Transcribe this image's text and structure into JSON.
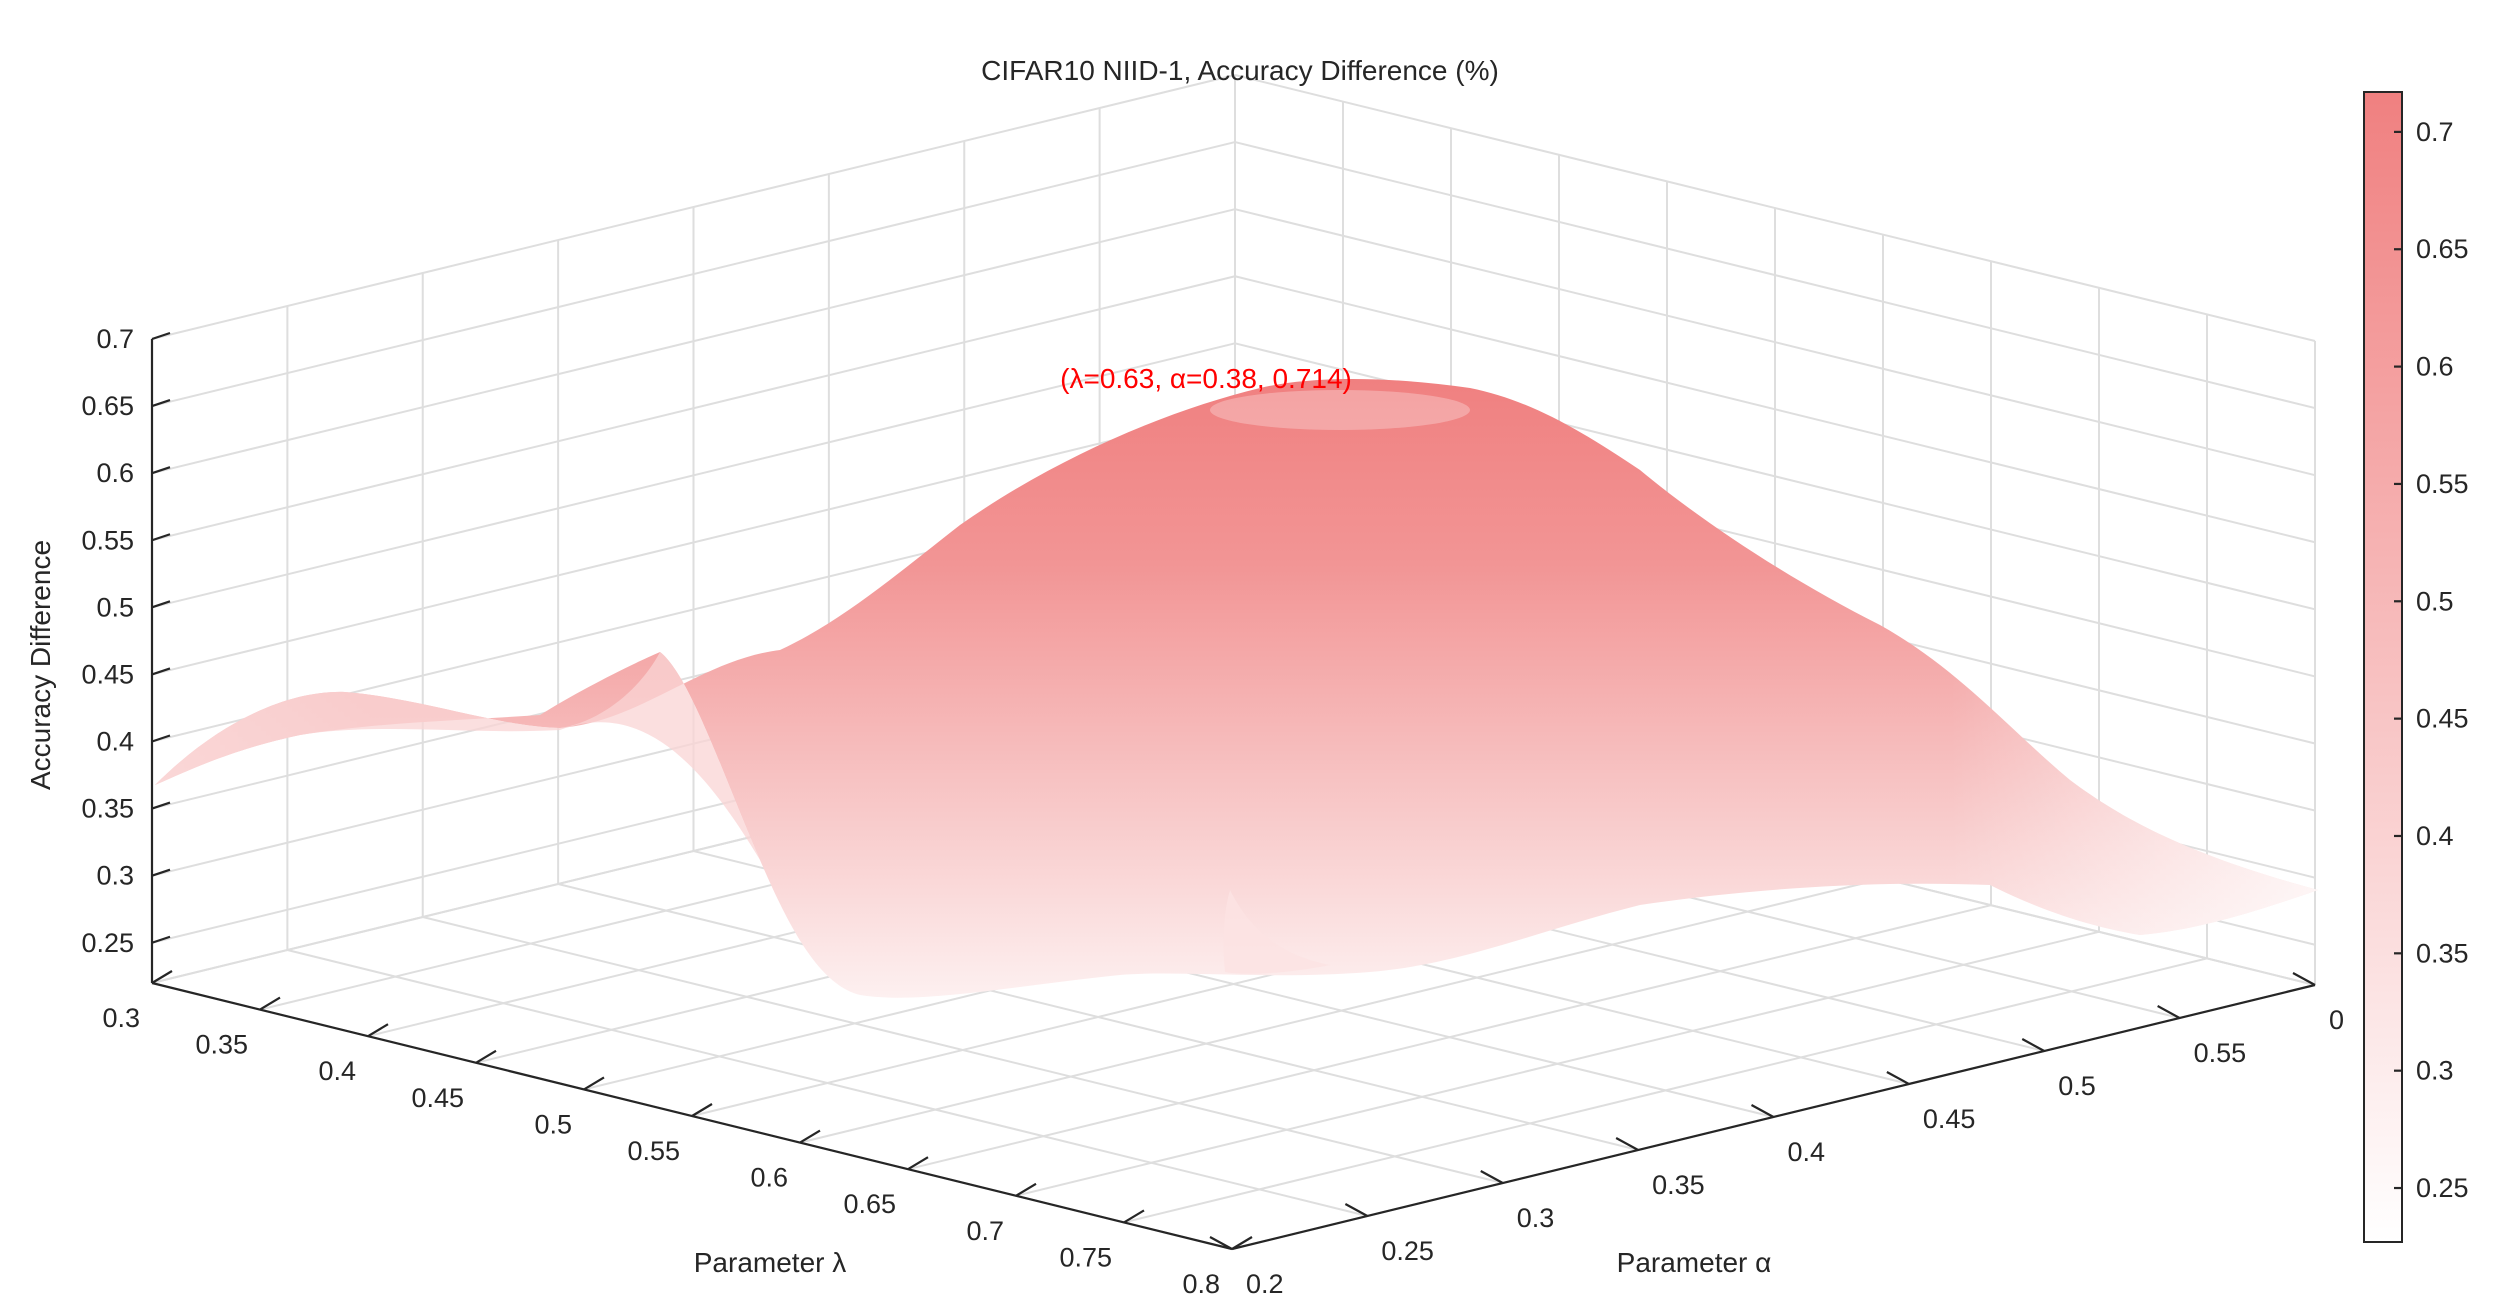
{
  "chart_data": {
    "type": "surface",
    "title": "CIFAR10 NIID-1, Accuracy Difference (%)",
    "xlabel": "Parameter α",
    "ylabel": "Parameter λ",
    "zlabel": "Accuracy Difference",
    "x_ticks": [
      "0.2",
      "0.25",
      "0.3",
      "0.35",
      "0.4",
      "0.45",
      "0.5",
      "0.55",
      "0"
    ],
    "x_range": [
      0.2,
      0.6
    ],
    "y_ticks": [
      "0.3",
      "0.35",
      "0.4",
      "0.45",
      "0.5",
      "0.55",
      "0.6",
      "0.65",
      "0.7",
      "0.75",
      "0.8"
    ],
    "y_range": [
      0.3,
      0.8
    ],
    "z_ticks": [
      "0.25",
      "0.3",
      "0.35",
      "0.4",
      "0.45",
      "0.5",
      "0.55",
      "0.6",
      "0.65",
      "0.7"
    ],
    "z_range": [
      0.22,
      0.7
    ],
    "grid": true,
    "colormap": {
      "low": "#ffffff",
      "high": "#f08080"
    },
    "colorbar": {
      "position": "right",
      "ticks": [
        "0.25",
        "0.3",
        "0.35",
        "0.4",
        "0.45",
        "0.5",
        "0.55",
        "0.6",
        "0.65",
        "0.7"
      ],
      "range": [
        0.227,
        0.717
      ]
    },
    "peak_annotation": "(λ=0.63, α=0.38, 0.714)",
    "surface_profile": {
      "alpha_edge_at_lambda_0.3": [
        {
          "alpha": 0.2,
          "z": 0.37
        },
        {
          "alpha": 0.3,
          "z": 0.42
        },
        {
          "alpha": 0.4,
          "z": 0.48
        },
        {
          "alpha": 0.5,
          "z": 0.55
        },
        {
          "alpha": 0.6,
          "z": 0.57
        }
      ],
      "lambda_edge_at_alpha_0.2": [
        {
          "lambda": 0.3,
          "z": 0.37
        },
        {
          "lambda": 0.4,
          "z": 0.43
        },
        {
          "lambda": 0.5,
          "z": 0.41
        },
        {
          "lambda": 0.6,
          "z": 0.45
        },
        {
          "lambda": 0.7,
          "z": 0.25
        },
        {
          "lambda": 0.8,
          "z": 0.24
        }
      ],
      "lambda_edge_at_alpha_0.6": [
        {
          "lambda": 0.3,
          "z": 0.57
        },
        {
          "lambda": 0.5,
          "z": 0.47
        },
        {
          "lambda": 0.6,
          "z": 0.34
        },
        {
          "lambda": 0.7,
          "z": 0.26
        },
        {
          "lambda": 0.8,
          "z": 0.27
        }
      ],
      "alpha_edge_at_lambda_0.8": [
        {
          "alpha": 0.2,
          "z": 0.24
        },
        {
          "alpha": 0.3,
          "z": 0.27
        },
        {
          "alpha": 0.4,
          "z": 0.27
        },
        {
          "alpha": 0.5,
          "z": 0.3
        },
        {
          "alpha": 0.6,
          "z": 0.27
        }
      ],
      "peak": {
        "lambda": 0.63,
        "alpha": 0.38,
        "z": 0.714
      }
    }
  }
}
